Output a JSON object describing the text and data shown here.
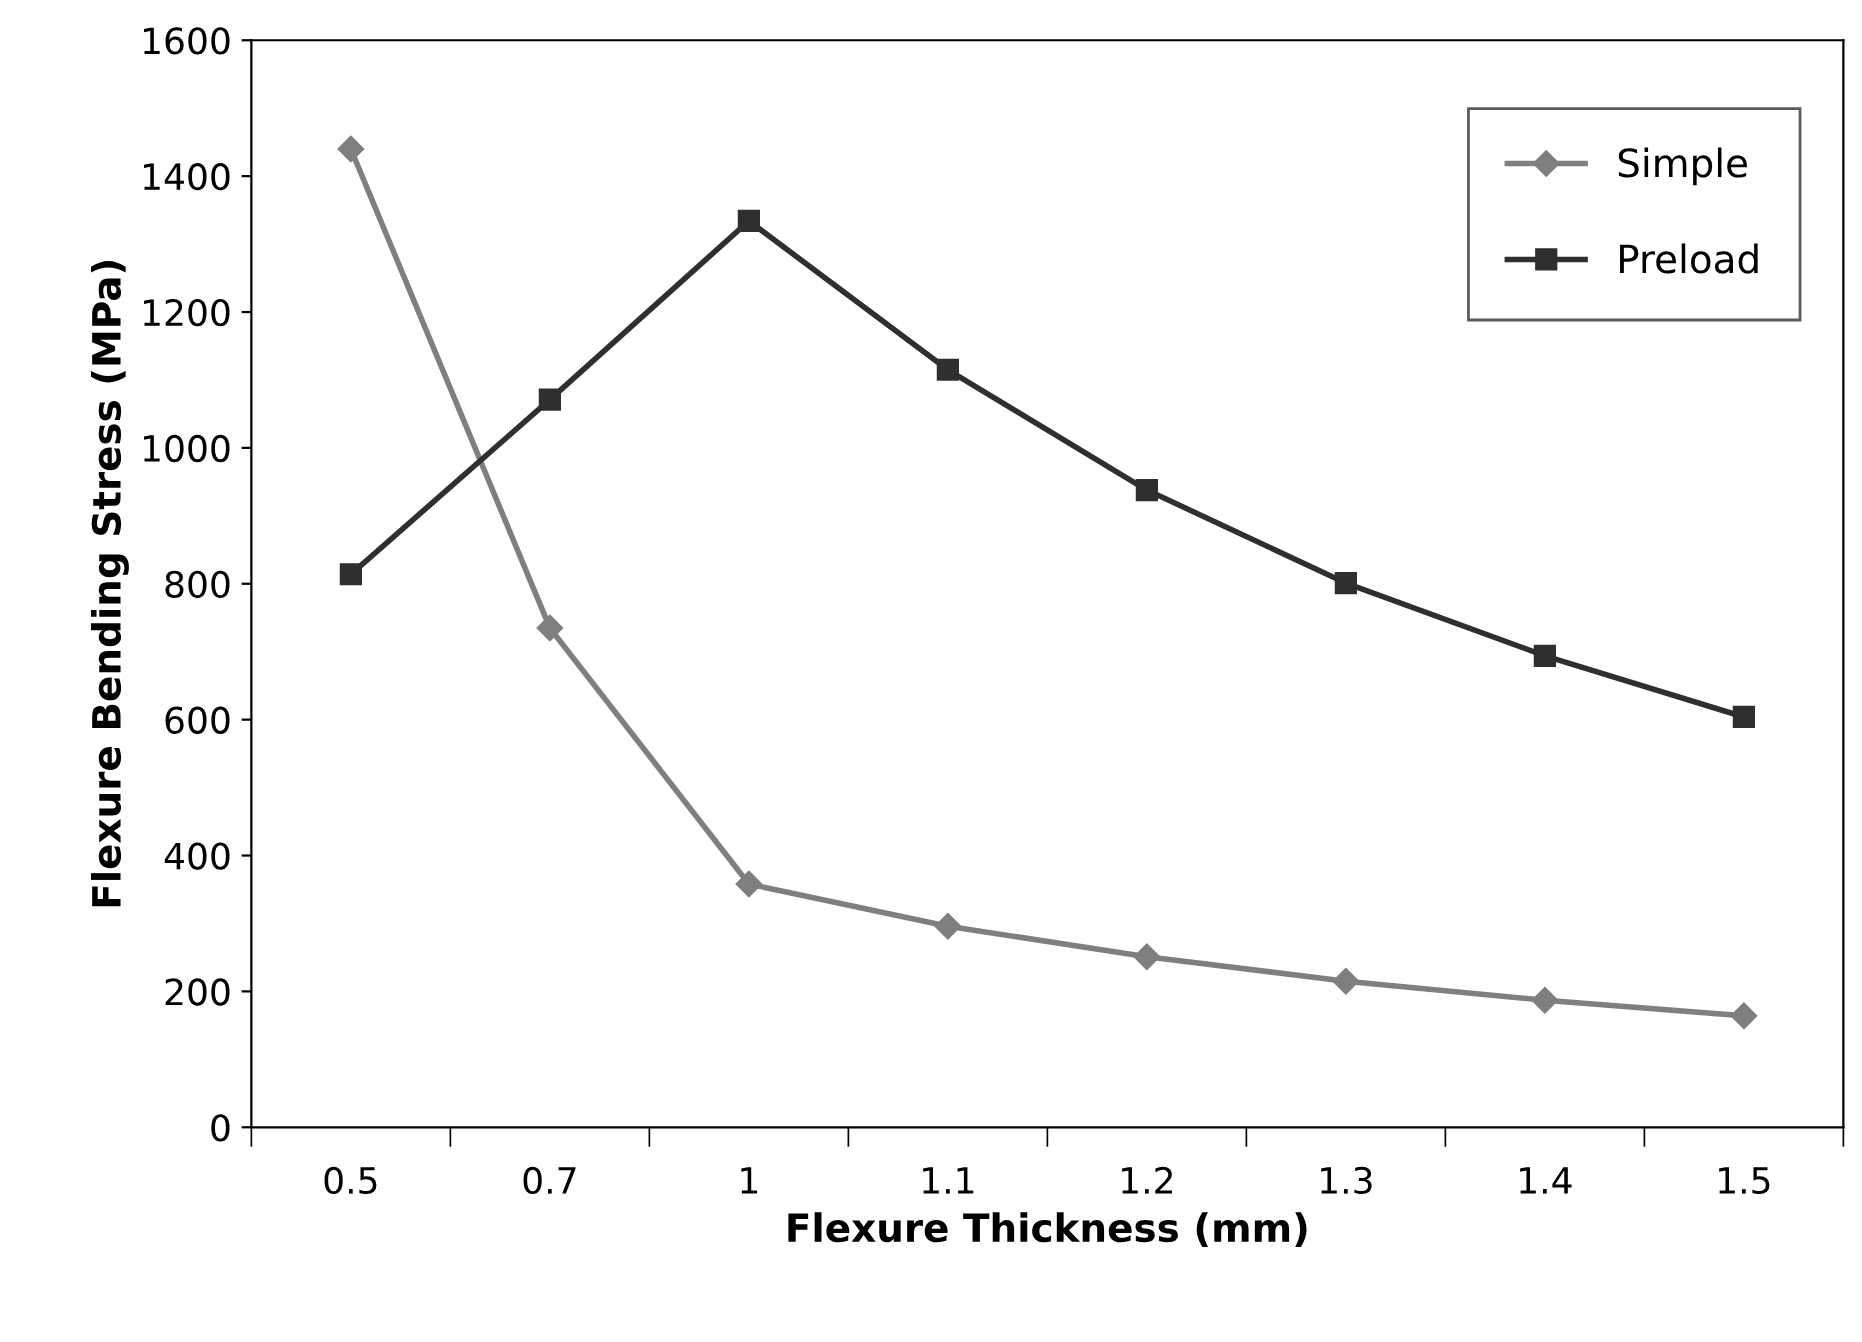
{
  "chart_data": {
    "type": "line",
    "xlabel": "Flexure Thickness (mm)",
    "ylabel": "Flexure Bending Stress (MPa)",
    "categories": [
      "0.5",
      "0.7",
      "1",
      "1.1",
      "1.2",
      "1.3",
      "1.4",
      "1.5"
    ],
    "series": [
      {
        "name": "Simple",
        "color": "#7f7f7f",
        "marker": "diamond",
        "values": [
          1440,
          735,
          358,
          296,
          251,
          215,
          187,
          164
        ]
      },
      {
        "name": "Preload",
        "color": "#2f2f2f",
        "marker": "square",
        "values": [
          814,
          1071,
          1334,
          1115,
          938,
          801,
          694,
          604
        ]
      }
    ],
    "ylim": [
      0,
      1600
    ],
    "yticks": [
      0,
      200,
      400,
      600,
      800,
      1000,
      1200,
      1400,
      1600
    ],
    "grid": false,
    "legend": "top right",
    "line_style": "solid"
  }
}
